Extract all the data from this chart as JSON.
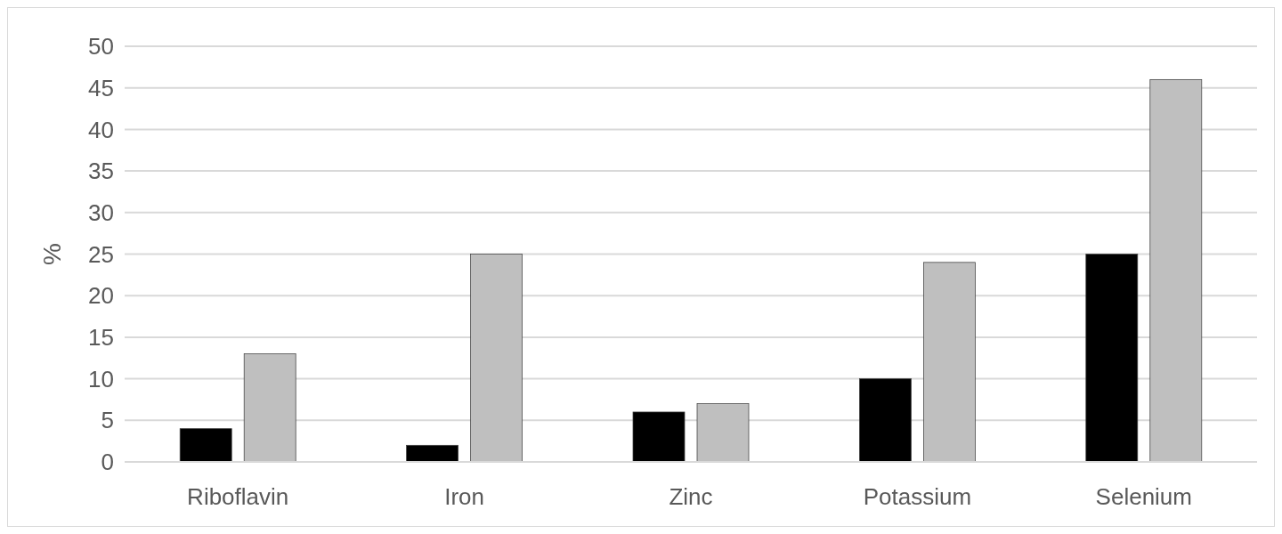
{
  "chart_data": {
    "type": "bar",
    "ylabel": "%",
    "categories": [
      "Riboflavin",
      "Iron",
      "Zinc",
      "Potassium",
      "Selenium"
    ],
    "series": [
      {
        "color": "#000000",
        "values": [
          4,
          2,
          6,
          10,
          25
        ]
      },
      {
        "color": "#bfbfbf",
        "values": [
          13,
          25,
          7,
          24,
          46
        ]
      }
    ],
    "ylim": [
      0,
      50
    ],
    "yticks": [
      0,
      5,
      10,
      15,
      20,
      25,
      30,
      35,
      40,
      45,
      50
    ],
    "grid": "y"
  }
}
